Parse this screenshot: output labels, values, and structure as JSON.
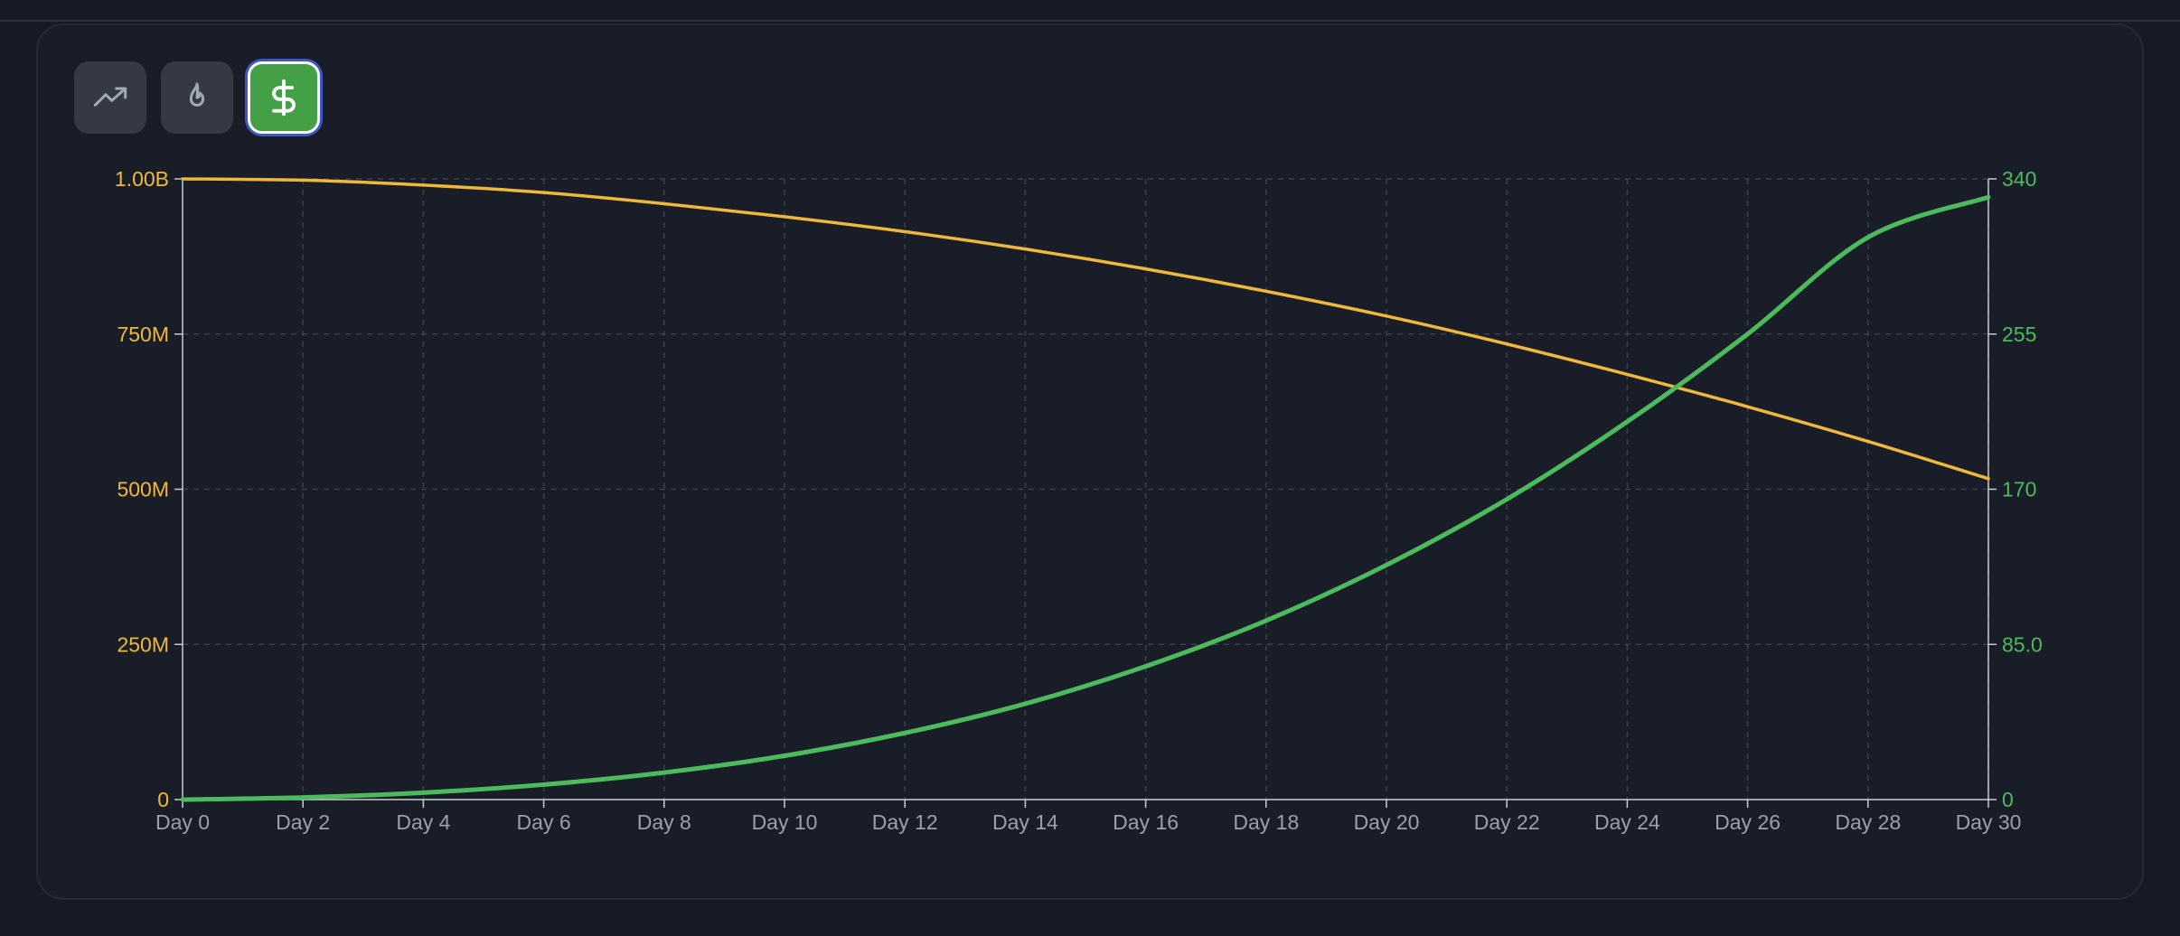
{
  "toolbar": {
    "buttons": [
      {
        "name": "trend",
        "icon": "trending-up-icon",
        "active": false
      },
      {
        "name": "burn",
        "icon": "flame-icon",
        "active": false
      },
      {
        "name": "price",
        "icon": "dollar-icon",
        "active": true
      }
    ]
  },
  "colors": {
    "left_axis": "#f0b83a",
    "right_axis": "#4cbb5c",
    "x_axis_text": "#9aa0ab",
    "grid": "#3a3f4b",
    "active_button": "#43a047"
  },
  "chart_data": {
    "type": "line",
    "title": "",
    "xlabel": "",
    "x_tick_labels": [
      "Day 0",
      "Day 2",
      "Day 4",
      "Day 6",
      "Day 8",
      "Day 10",
      "Day 12",
      "Day 14",
      "Day 16",
      "Day 18",
      "Day 20",
      "Day 22",
      "Day 24",
      "Day 26",
      "Day 28",
      "Day 30"
    ],
    "x": [
      0,
      2,
      4,
      6,
      8,
      10,
      12,
      14,
      16,
      18,
      20,
      22,
      24,
      26,
      28,
      30
    ],
    "xlim": [
      0,
      30
    ],
    "y_left": {
      "ylim": [
        0,
        1000000000
      ],
      "tick_values": [
        0,
        250000000,
        500000000,
        750000000,
        1000000000
      ],
      "tick_labels": [
        "0",
        "250M",
        "500M",
        "750M",
        "1.00B"
      ]
    },
    "y_right": {
      "ylim": [
        0,
        340
      ],
      "tick_values": [
        0,
        85,
        170,
        255,
        340
      ],
      "tick_labels": [
        "0",
        "85.0",
        "170",
        "255",
        "340"
      ]
    },
    "grid": true,
    "series": [
      {
        "axis": "left",
        "color": "#f0b83a",
        "values": [
          1000000000,
          998000000,
          990000000,
          978000000,
          960000000,
          939000000,
          915000000,
          887000000,
          855000000,
          819000000,
          779000000,
          734000000,
          685000000,
          633000000,
          577000000,
          517000000
        ]
      },
      {
        "axis": "right",
        "color": "#4cbb5c",
        "values": [
          0,
          1.2,
          3.8,
          8.2,
          14.8,
          24,
          36.5,
          52.5,
          73,
          98,
          128.5,
          164.5,
          207,
          255,
          308,
          330
        ]
      }
    ]
  }
}
